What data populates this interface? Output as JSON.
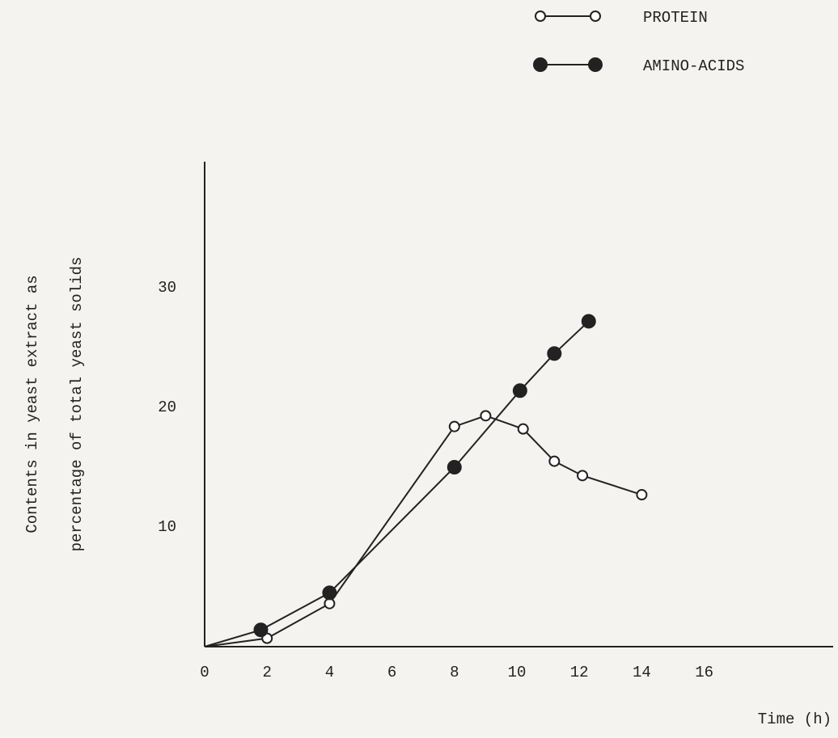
{
  "chart_data": {
    "type": "line",
    "xlabel": "Time (h)",
    "ylabel": [
      "Contents in yeast extract as",
      "percentage of total yeast solids"
    ],
    "xlim": [
      0,
      20
    ],
    "ylim": [
      0,
      40
    ],
    "xticks": [
      0,
      2,
      4,
      6,
      8,
      10,
      12,
      14,
      16
    ],
    "yticks": [
      10,
      20,
      30
    ],
    "grid": false,
    "legend": "top-right",
    "series": [
      {
        "name": "PROTEIN",
        "color": "#222222",
        "marker": "open",
        "x": [
          0,
          2,
          4,
          8,
          9,
          10.2,
          11.2,
          12.1,
          14
        ],
        "values": [
          0,
          0.7,
          3.6,
          18.4,
          19.3,
          18.2,
          15.5,
          14.3,
          12.7
        ]
      },
      {
        "name": "AMINO-ACIDS",
        "color": "#222222",
        "marker": "filled",
        "x": [
          0,
          1.8,
          4,
          8,
          10.1,
          11.2,
          12.3
        ],
        "values": [
          0,
          1.4,
          4.5,
          15.0,
          21.4,
          24.5,
          27.2
        ]
      }
    ]
  }
}
